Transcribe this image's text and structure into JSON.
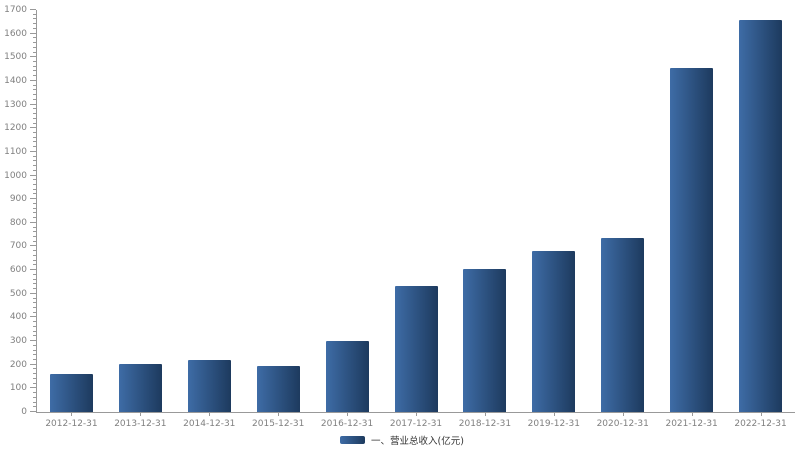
{
  "chart_data": {
    "type": "bar",
    "title": "",
    "xlabel": "",
    "ylabel": "",
    "categories": [
      "2012-12-31",
      "2013-12-31",
      "2014-12-31",
      "2015-12-31",
      "2016-12-31",
      "2017-12-31",
      "2018-12-31",
      "2019-12-31",
      "2020-12-31",
      "2021-12-31",
      "2022-12-31"
    ],
    "values": [
      159,
      202,
      221,
      195,
      301,
      531,
      606,
      681,
      734,
      1455,
      1656
    ],
    "legend": "一、营业总收入(亿元)",
    "ylim": [
      0,
      1700
    ],
    "y_tick_step": 100,
    "y_minor_tick_step": 20,
    "grid": false,
    "legend_position": "bottom-center",
    "colors": {
      "bar_gradient_left": "#3e6ca6",
      "bar_gradient_right": "#1d3a5e",
      "axis": "#999999",
      "tick_label": "#808080",
      "legend_text": "#333333",
      "background": "#ffffff"
    }
  }
}
